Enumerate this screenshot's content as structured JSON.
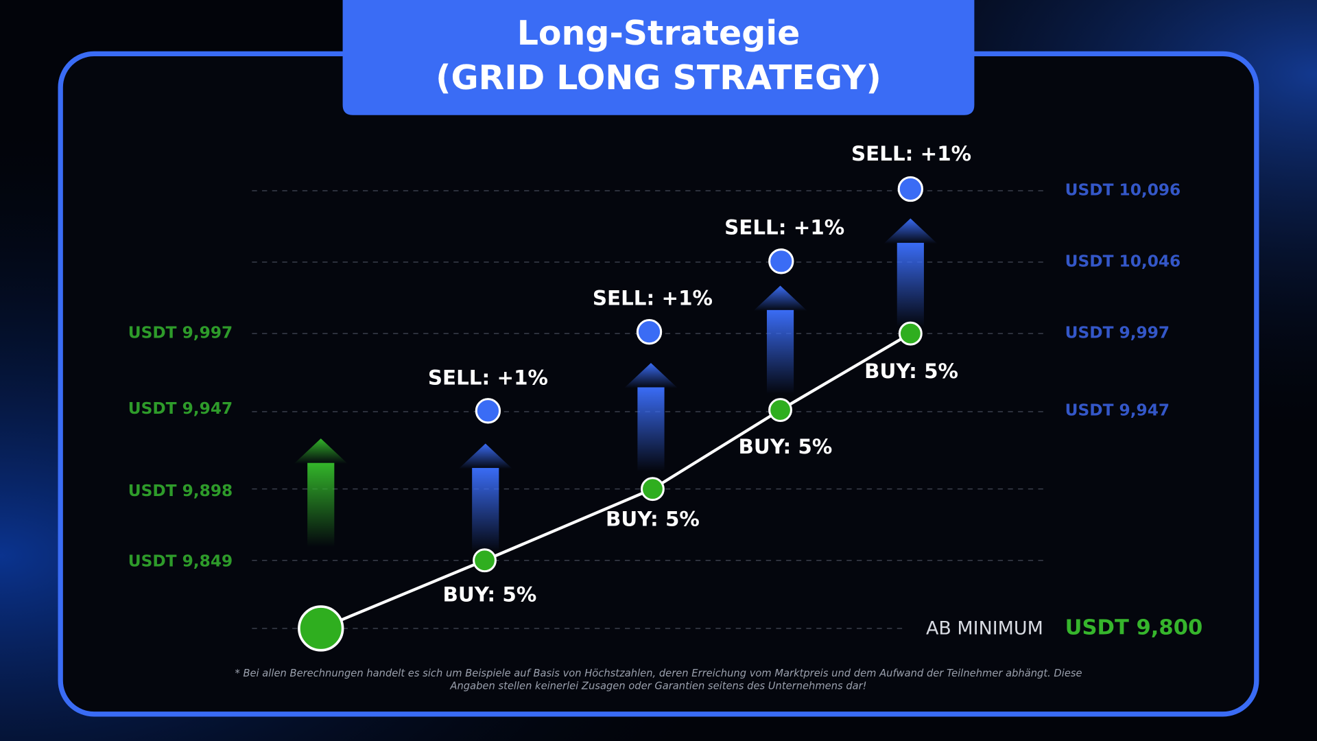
{
  "title": {
    "line1": "Long-Strategie",
    "line2": "(GRID LONG STRATEGY)"
  },
  "levels_left": [
    "USDT 9,997",
    "USDT 9,947",
    "USDT 9,898",
    "USDT 9,849"
  ],
  "levels_right": [
    "USDT 10,096",
    "USDT 10,046",
    "USDT 9,997",
    "USDT 9,947"
  ],
  "minimum": {
    "label": "AB MINIMUM",
    "value": "USDT 9,800"
  },
  "buy_labels": [
    "BUY: 5%",
    "BUY: 5%",
    "BUY: 5%",
    "BUY: 5%"
  ],
  "sell_labels": [
    "SELL: +1%",
    "SELL: +1%",
    "SELL: +1%",
    "SELL: +1%"
  ],
  "disclaimer": [
    "* Bei allen Berechnungen handelt es sich um Beispiele auf Basis von Höchstzahlen, deren Erreichung vom Marktpreis und dem Aufwand der Teilnehmer abhängt. Diese",
    "Angaben stellen keinerlei Zusagen oder Garantien seitens des Unternehmens dar!"
  ]
}
